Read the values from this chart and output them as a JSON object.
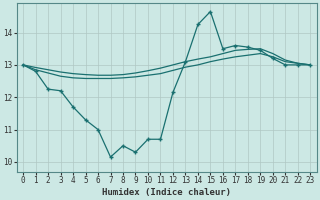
{
  "xlabel": "Humidex (Indice chaleur)",
  "bg_color": "#cce8e4",
  "grid_color": "#b0c8c4",
  "line_color": "#1a7070",
  "xlim": [
    -0.5,
    23.5
  ],
  "ylim": [
    9.7,
    14.9
  ],
  "xticks": [
    0,
    1,
    2,
    3,
    4,
    5,
    6,
    7,
    8,
    9,
    10,
    11,
    12,
    13,
    14,
    15,
    16,
    17,
    18,
    19,
    20,
    21,
    22,
    23
  ],
  "yticks": [
    10,
    11,
    12,
    13,
    14
  ],
  "line1_x": [
    0,
    1,
    2,
    3,
    4,
    5,
    6,
    7,
    8,
    9,
    10,
    11,
    12,
    13,
    14,
    15,
    16,
    17,
    18,
    19,
    20,
    21,
    22,
    23
  ],
  "line1_y": [
    13.0,
    12.85,
    12.75,
    12.65,
    12.6,
    12.58,
    12.58,
    12.58,
    12.6,
    12.63,
    12.68,
    12.73,
    12.83,
    12.93,
    13.0,
    13.1,
    13.18,
    13.25,
    13.3,
    13.35,
    13.25,
    13.1,
    13.05,
    13.0
  ],
  "line2_x": [
    0,
    1,
    2,
    3,
    4,
    5,
    6,
    7,
    8,
    9,
    10,
    11,
    12,
    13,
    14,
    15,
    16,
    17,
    18,
    19,
    20,
    21,
    22,
    23
  ],
  "line2_y": [
    13.0,
    12.92,
    12.85,
    12.78,
    12.73,
    12.7,
    12.68,
    12.68,
    12.7,
    12.75,
    12.82,
    12.9,
    13.0,
    13.1,
    13.18,
    13.25,
    13.35,
    13.45,
    13.48,
    13.5,
    13.35,
    13.15,
    13.05,
    13.0
  ],
  "line3_x": [
    0,
    1,
    2,
    3,
    4,
    5,
    6,
    7,
    8,
    9,
    10,
    11,
    12,
    13,
    14,
    15,
    16,
    17,
    18,
    19,
    20,
    21,
    22,
    23
  ],
  "line3_y": [
    13.0,
    12.8,
    12.25,
    12.2,
    11.7,
    11.3,
    11.0,
    10.15,
    10.5,
    10.3,
    10.7,
    10.7,
    12.15,
    13.1,
    14.25,
    14.65,
    13.5,
    13.6,
    13.55,
    13.45,
    13.2,
    13.0,
    13.0,
    13.0
  ],
  "markers3_x": [
    0,
    1,
    3,
    6,
    7,
    8,
    9,
    10,
    11,
    12,
    13,
    14,
    15,
    16,
    17,
    18,
    19,
    20,
    21,
    22,
    23
  ],
  "markers3_y": [
    13.0,
    12.8,
    12.2,
    11.0,
    10.15,
    10.5,
    10.3,
    10.7,
    10.7,
    12.15,
    13.1,
    14.25,
    14.65,
    13.5,
    13.6,
    13.55,
    13.45,
    13.2,
    13.0,
    13.0,
    13.0
  ]
}
